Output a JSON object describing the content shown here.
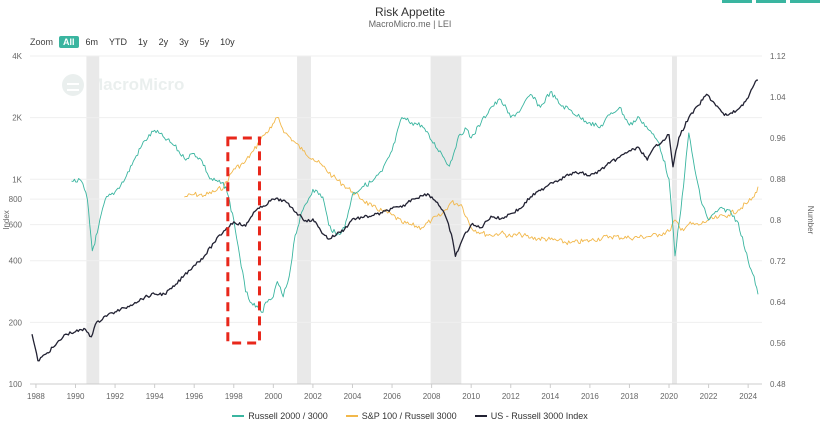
{
  "header": {
    "title": "Risk Appetite",
    "subtitle": "MacroMicro.me | LEI"
  },
  "watermark": {
    "text": "MacroMicro",
    "icon": "macromicro-logo-icon"
  },
  "zoom": {
    "label": "Zoom",
    "buttons": [
      "All",
      "6m",
      "YTD",
      "1y",
      "2y",
      "3y",
      "5y",
      "10y"
    ],
    "active": "All"
  },
  "chart_data": {
    "type": "line",
    "title": "Risk Appetite",
    "subtitle": "MacroMicro.me | LEI",
    "x_ticks": [
      "1988",
      "1990",
      "1992",
      "1994",
      "1996",
      "1998",
      "2000",
      "2002",
      "2004",
      "2006",
      "2008",
      "2010",
      "2012",
      "2014",
      "2016",
      "2018",
      "2020",
      "2022",
      "2024"
    ],
    "xlim": [
      1987.7,
      2024.7
    ],
    "y_left": {
      "label": "Index",
      "scale": "log",
      "ticks": [
        100,
        200,
        400,
        600,
        800,
        1000,
        2000,
        4000
      ],
      "tick_labels": [
        "100",
        "200",
        "400",
        "600",
        "800",
        "1K",
        "2K",
        "4K"
      ],
      "range": [
        100,
        4000
      ]
    },
    "y_right": {
      "label": "Number",
      "scale": "linear",
      "ticks": [
        0.48,
        0.56,
        0.64,
        0.72,
        0.8,
        0.88,
        0.96,
        1.04,
        1.12
      ],
      "tick_labels": [
        "0.48",
        "0.56",
        "0.64",
        "0.72",
        "0.8",
        "0.88",
        "0.96",
        "1.04",
        "1.12"
      ],
      "range": [
        0.48,
        1.12
      ]
    },
    "recessions": [
      [
        1990.55,
        1991.2
      ],
      [
        2001.2,
        2001.9
      ],
      [
        2007.95,
        2009.5
      ],
      [
        2020.15,
        2020.4
      ]
    ],
    "highlight_box": {
      "x_range": [
        1997.7,
        1999.3
      ],
      "y_range": [
        0.56,
        0.96
      ],
      "color": "#e8271b"
    },
    "series": [
      {
        "name": "Russell 2000 / 3000",
        "axis": "right",
        "color": "#3ab5a0",
        "x": [
          1989.8,
          1990.3,
          1990.6,
          1990.85,
          1991.1,
          1991.5,
          1992.0,
          1992.5,
          1993.0,
          1993.5,
          1994.0,
          1994.5,
          1995.0,
          1995.5,
          1996.0,
          1996.4,
          1996.8,
          1997.2,
          1997.6,
          1998.0,
          1998.3,
          1998.6,
          1998.9,
          1999.1,
          1999.4,
          1999.7,
          2000.0,
          2000.2,
          2000.5,
          2000.8,
          2001.1,
          2001.5,
          2002.0,
          2002.5,
          2002.8,
          2003.2,
          2003.6,
          2004.0,
          2004.5,
          2005.0,
          2005.5,
          2006.0,
          2006.5,
          2007.0,
          2007.5,
          2008.0,
          2008.5,
          2008.9,
          2009.3,
          2009.7,
          2010.0,
          2010.5,
          2011.0,
          2011.5,
          2012.0,
          2012.5,
          2013.0,
          2013.5,
          2014.0,
          2014.5,
          2015.0,
          2015.5,
          2016.0,
          2016.5,
          2017.0,
          2017.5,
          2018.0,
          2018.5,
          2019.0,
          2019.5,
          2020.0,
          2020.3,
          2020.6,
          2021.0,
          2021.3,
          2021.6,
          2022.0,
          2022.5,
          2023.0,
          2023.5,
          2024.0,
          2024.3,
          2024.5
        ],
        "values": [
          0.876,
          0.876,
          0.84,
          0.74,
          0.775,
          0.84,
          0.855,
          0.88,
          0.92,
          0.955,
          0.975,
          0.96,
          0.945,
          0.92,
          0.93,
          0.915,
          0.88,
          0.875,
          0.865,
          0.8,
          0.73,
          0.66,
          0.638,
          0.63,
          0.62,
          0.64,
          0.65,
          0.68,
          0.65,
          0.69,
          0.77,
          0.82,
          0.86,
          0.845,
          0.79,
          0.77,
          0.785,
          0.85,
          0.865,
          0.875,
          0.895,
          0.935,
          1.0,
          0.99,
          0.985,
          0.955,
          0.93,
          0.905,
          0.955,
          0.98,
          0.96,
          0.99,
          1.02,
          1.035,
          1.0,
          1.015,
          1.045,
          1.02,
          1.05,
          1.025,
          1.015,
          1.0,
          0.99,
          0.98,
          1.005,
          1.02,
          0.985,
          1.0,
          0.975,
          0.95,
          0.88,
          0.73,
          0.82,
          0.97,
          0.9,
          0.84,
          0.8,
          0.82,
          0.82,
          0.795,
          0.72,
          0.69,
          0.655
        ]
      },
      {
        "name": "S&P 100 / Russell 3000",
        "axis": "right",
        "color": "#f2b84b",
        "x": [
          1995.5,
          1996.0,
          1996.5,
          1997.0,
          1997.5,
          1998.0,
          1998.5,
          1999.0,
          1999.5,
          1999.9,
          2000.2,
          2000.6,
          2001.0,
          2001.5,
          2002.0,
          2002.5,
          2003.0,
          2003.5,
          2004.0,
          2004.5,
          2005.0,
          2005.5,
          2006.0,
          2006.5,
          2007.0,
          2007.5,
          2008.0,
          2008.5,
          2009.0,
          2009.5,
          2010.0,
          2010.5,
          2011.0,
          2011.5,
          2012.0,
          2012.5,
          2013.0,
          2014.0,
          2015.0,
          2016.0,
          2017.0,
          2018.0,
          2019.0,
          2019.5,
          2020.0,
          2020.3,
          2020.6,
          2021.0,
          2021.5,
          2022.0,
          2022.5,
          2023.0,
          2023.5,
          2024.0,
          2024.3,
          2024.5
        ],
        "values": [
          0.845,
          0.85,
          0.848,
          0.855,
          0.865,
          0.9,
          0.91,
          0.935,
          0.965,
          0.98,
          1.0,
          0.97,
          0.955,
          0.935,
          0.92,
          0.905,
          0.885,
          0.87,
          0.855,
          0.84,
          0.826,
          0.818,
          0.81,
          0.795,
          0.79,
          0.785,
          0.8,
          0.81,
          0.835,
          0.83,
          0.785,
          0.775,
          0.77,
          0.775,
          0.768,
          0.772,
          0.765,
          0.762,
          0.755,
          0.76,
          0.768,
          0.765,
          0.768,
          0.772,
          0.778,
          0.8,
          0.78,
          0.792,
          0.79,
          0.8,
          0.805,
          0.81,
          0.82,
          0.835,
          0.845,
          0.865
        ]
      },
      {
        "name": "US - Russell 3000 Index",
        "axis": "left",
        "color": "#222233",
        "x": [
          1987.8,
          1988.1,
          1988.5,
          1989.0,
          1989.5,
          1990.0,
          1990.5,
          1990.8,
          1991.0,
          1991.5,
          1992.0,
          1992.5,
          1993.0,
          1993.5,
          1994.0,
          1994.5,
          1995.0,
          1995.5,
          1996.0,
          1996.5,
          1997.0,
          1997.5,
          1998.0,
          1998.6,
          1999.0,
          1999.5,
          2000.0,
          2000.5,
          2000.9,
          2001.3,
          2001.7,
          2002.0,
          2002.4,
          2002.8,
          2003.2,
          2003.6,
          2004.0,
          2004.5,
          2005.0,
          2005.5,
          2006.0,
          2006.5,
          2007.0,
          2007.5,
          2007.8,
          2008.3,
          2008.7,
          2009.0,
          2009.2,
          2009.6,
          2010.0,
          2010.5,
          2011.0,
          2011.5,
          2012.0,
          2012.5,
          2013.0,
          2013.5,
          2014.0,
          2014.5,
          2015.0,
          2015.5,
          2016.0,
          2016.5,
          2017.0,
          2017.5,
          2018.0,
          2018.5,
          2018.9,
          2019.3,
          2019.7,
          2020.0,
          2020.2,
          2020.5,
          2021.0,
          2021.5,
          2021.9,
          2022.3,
          2022.8,
          2023.2,
          2023.6,
          2024.0,
          2024.3,
          2024.5
        ],
        "values": [
          175,
          130,
          140,
          155,
          175,
          180,
          185,
          170,
          195,
          215,
          225,
          235,
          250,
          265,
          275,
          275,
          300,
          340,
          380,
          420,
          490,
          560,
          620,
          590,
          690,
          740,
          800,
          790,
          730,
          670,
          620,
          640,
          560,
          510,
          540,
          570,
          640,
          650,
          665,
          685,
          720,
          730,
          800,
          830,
          850,
          770,
          660,
          540,
          420,
          520,
          600,
          580,
          660,
          640,
          680,
          720,
          820,
          880,
          960,
          1000,
          1060,
          1080,
          1040,
          1100,
          1200,
          1280,
          1380,
          1420,
          1240,
          1450,
          1550,
          1650,
          1150,
          1600,
          2000,
          2300,
          2600,
          2350,
          2050,
          2100,
          2250,
          2500,
          2900,
          3050
        ]
      }
    ]
  }
}
